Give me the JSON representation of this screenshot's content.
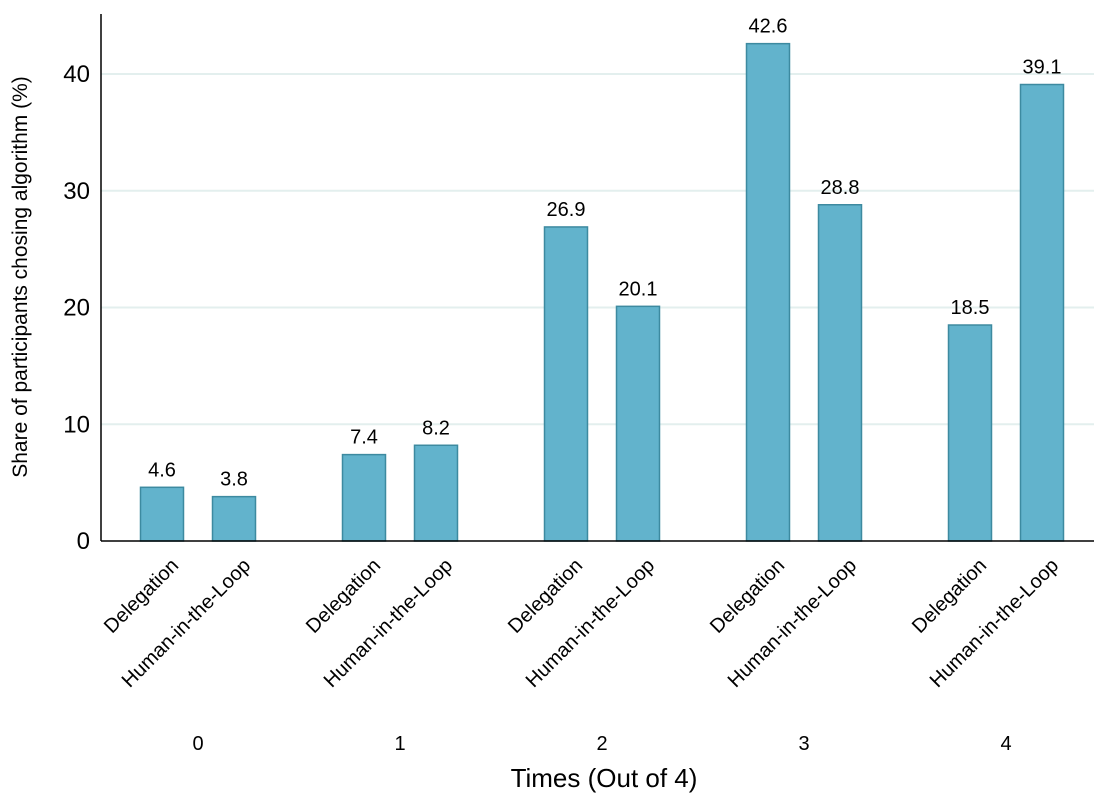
{
  "chart_data": {
    "type": "bar",
    "xlabel": "Times (Out of 4)",
    "ylabel": "Share of participants chosing algorithm (%)",
    "ylim": [
      0,
      45
    ],
    "yticks": [
      0,
      10,
      20,
      30,
      40
    ],
    "grid": true,
    "bar_color": "#62b3cc",
    "bar_edge_color": "#3d8aa0",
    "grid_color": "#e3efee",
    "groups": [
      {
        "label": "0",
        "bars": [
          {
            "category": "Delegation",
            "value": 4.6,
            "value_label": "4.6"
          },
          {
            "category": "Human-in-the-Loop",
            "value": 3.8,
            "value_label": "3.8"
          }
        ]
      },
      {
        "label": "1",
        "bars": [
          {
            "category": "Delegation",
            "value": 7.4,
            "value_label": "7.4"
          },
          {
            "category": "Human-in-the-Loop",
            "value": 8.2,
            "value_label": "8.2"
          }
        ]
      },
      {
        "label": "2",
        "bars": [
          {
            "category": "Delegation",
            "value": 26.9,
            "value_label": "26.9"
          },
          {
            "category": "Human-in-the-Loop",
            "value": 20.1,
            "value_label": "20.1"
          }
        ]
      },
      {
        "label": "3",
        "bars": [
          {
            "category": "Delegation",
            "value": 42.6,
            "value_label": "42.6"
          },
          {
            "category": "Human-in-the-Loop",
            "value": 28.8,
            "value_label": "28.8"
          }
        ]
      },
      {
        "label": "4",
        "bars": [
          {
            "category": "Delegation",
            "value": 18.5,
            "value_label": "18.5"
          },
          {
            "category": "Human-in-the-Loop",
            "value": 39.1,
            "value_label": "39.1"
          }
        ]
      }
    ]
  }
}
